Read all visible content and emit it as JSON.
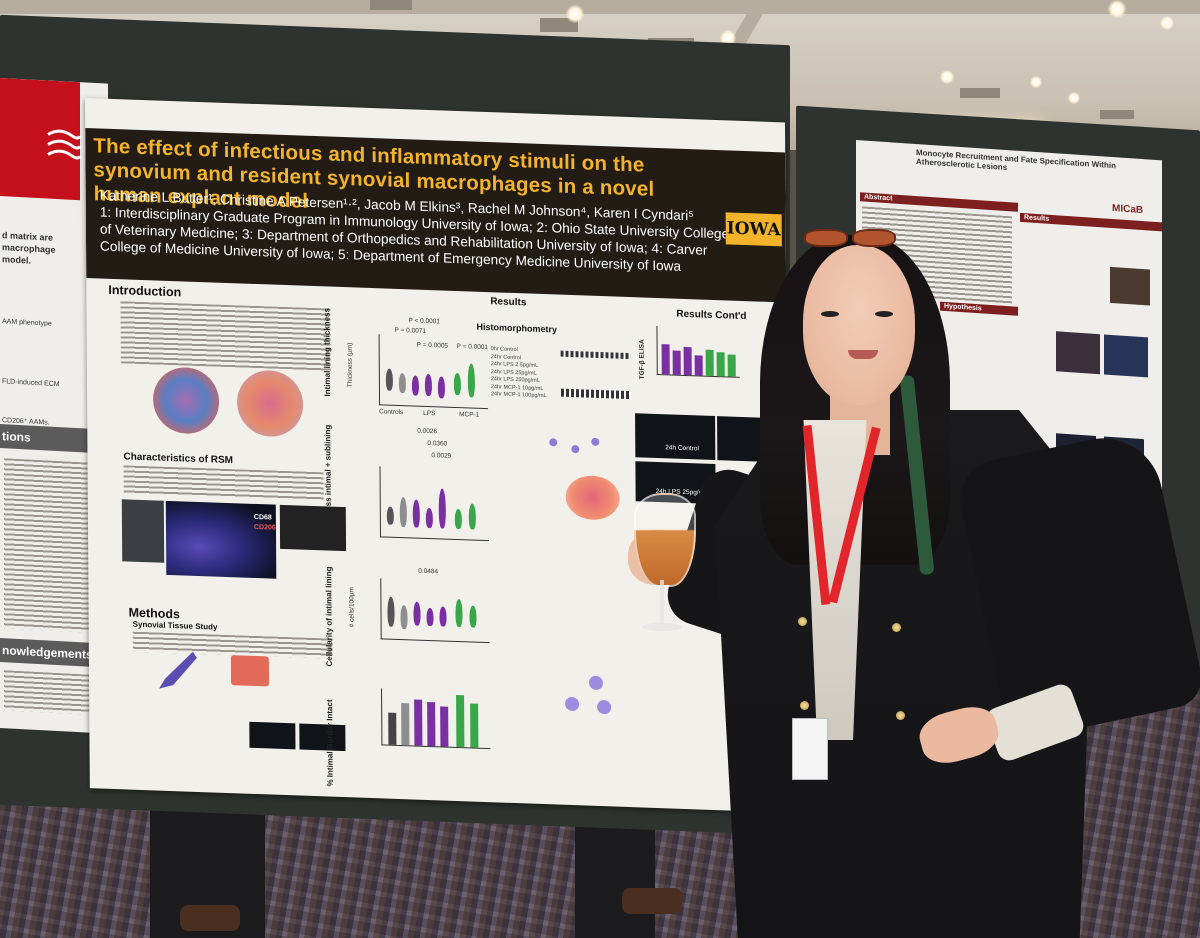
{
  "poster": {
    "title": "The effect of infectious and inflammatory stimuli on the synovium and resident synovial macrophages in a novel human explant model",
    "authors_line": "Katherine L Butler¹, Christine A Petersen¹·², Jacob M Elkins³, Rachel M Johnson⁴, Karen I Cyndari⁵",
    "affiliations": "1: Interdisciplinary Graduate Program in Immunology University of Iowa; 2: Ohio State University College of Veterinary Medicine; 3: Department of Orthopedics and Rehabilitation University of Iowa; 4: Carver College of Medicine University of Iowa; 5: Department of Emergency Medicine University of Iowa",
    "logo": "IOWA",
    "sections": {
      "introduction": "Introduction",
      "results": "Results",
      "results_contd": "Results Cont'd",
      "histomorphometry": "Histomorphometry",
      "characteristics": "Characteristics of RSM",
      "methods": "Methods",
      "synovial_tissue_study": "Synovial Tissue Study"
    },
    "axis_labels": {
      "intimal_thickness": "Intimal lining thickness",
      "thickness_um": "Thickness (µm)",
      "intimal_sublining": "Thickness intimal + sublining",
      "cellularity": "Cellularity of intimal lining",
      "cells_per_100um": "# cells/100µm",
      "intact_border": "% Intimal Border Intact",
      "tgf": "TGF-β ELISA"
    },
    "group_labels": [
      "Controls",
      "LPS",
      "MCP-1"
    ],
    "legend": [
      "0hr Control",
      "24hr Control",
      "24hr LPS 2.5pg/mL",
      "24hr LPS 25pg/mL",
      "24hr LPS 250pg/mL",
      "24hr MCP-1 10pg/mL",
      "24hr MCP-1 100pg/mL"
    ],
    "p_values": [
      "P < 0.0001",
      "P = 0.0071",
      "P = 0.0005",
      "P = 0.0001",
      "0.0026",
      "0.0360",
      "0.0029",
      "0.0484"
    ],
    "image_labels": [
      "CD68",
      "CD206",
      "24h Control",
      "24h LPS 25pg/mL"
    ]
  },
  "left_poster": {
    "tabs": [
      "tions",
      "nowledgements"
    ],
    "snippets": [
      "d matrix are",
      "macrophage",
      "model.",
      "AAM phenotype",
      "FLD-induced ECM",
      "CD206⁺ AAMs."
    ]
  },
  "right_poster": {
    "title": "Monocyte Recruitment and Fate Specification Within Atherosclerotic Lesions",
    "logo": "MICaB",
    "sections": [
      "Abstract",
      "Results",
      "Hypothesis"
    ]
  },
  "colors": {
    "title_band": "#231c15",
    "title_gold": "#f3b32a",
    "lps_purple": "#7a2fa3",
    "mcp_green": "#3aa64a",
    "board": "#2e332f",
    "lanyard_red": "#e2252a"
  }
}
